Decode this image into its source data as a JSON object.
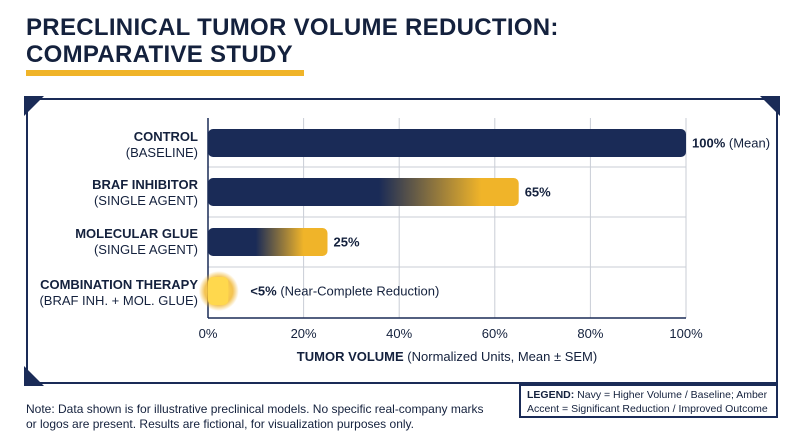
{
  "title": {
    "line1": "PRECLINICAL TUMOR VOLUME REDUCTION:",
    "line2": "COMPARATIVE STUDY"
  },
  "colors": {
    "navy": "#14213d",
    "bar_navy": "#1a2b57",
    "amber": "#f0b429",
    "amber_light": "#ffd84d"
  },
  "chart_data": {
    "type": "bar",
    "orientation": "horizontal",
    "categories": [
      {
        "main": "CONTROL",
        "sub": "(BASELINE)"
      },
      {
        "main": "BRAF INHIBITOR",
        "sub": "(SINGLE AGENT)"
      },
      {
        "main": "MOLECULAR GLUE",
        "sub": "(SINGLE AGENT)"
      },
      {
        "main": "COMBINATION THERAPY",
        "sub": "(BRAF INH. + MOL. GLUE)"
      }
    ],
    "values": [
      100,
      65,
      25,
      5
    ],
    "value_labels": [
      {
        "num": "100%",
        "note": " (Mean)"
      },
      {
        "num": "65%",
        "note": ""
      },
      {
        "num": "25%",
        "note": ""
      },
      {
        "num": "<5%",
        "note": " (Near-Complete Reduction)"
      }
    ],
    "xlim": [
      0,
      100
    ],
    "xticks": [
      "0%",
      "20%",
      "40%",
      "60%",
      "80%",
      "100%"
    ],
    "xtick_values": [
      0,
      20,
      40,
      60,
      80,
      100
    ],
    "xlabel_main": "TUMOR VOLUME",
    "xlabel_sub": " (Normalized Units, Mean ± SEM)",
    "grid": true
  },
  "legend": {
    "label": "LEGEND:",
    "text": " Navy = Higher Volume / Baseline; Amber Accent = Significant Reduction / Improved Outcome"
  },
  "note": "Note: Data shown is for illustrative preclinical models. No specific real-company marks or logos are present. Results are fictional, for visualization purposes only."
}
